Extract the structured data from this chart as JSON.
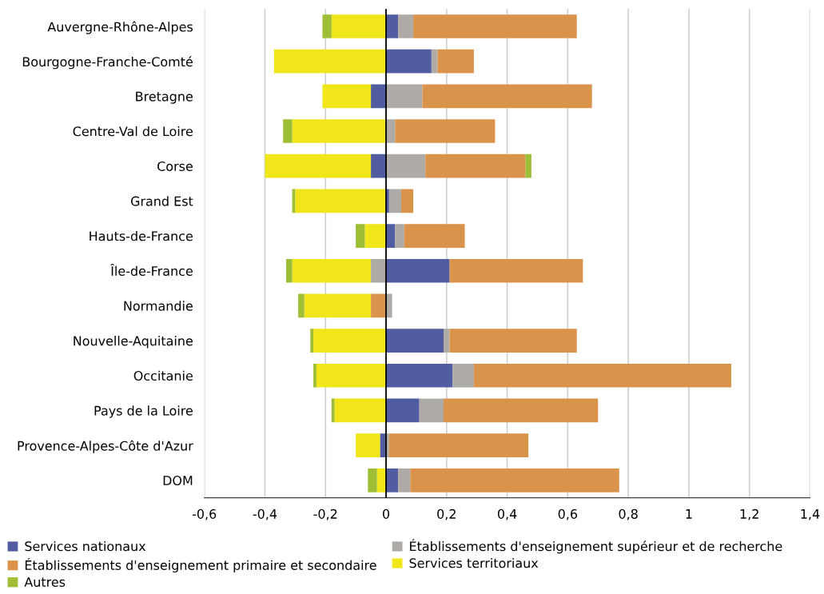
{
  "chart_data": {
    "type": "bar",
    "orientation": "horizontal",
    "stacked": true,
    "categories": [
      "Auvergne-Rhône-Alpes",
      "Bourgogne-Franche-Comté",
      "Bretagne",
      "Centre-Val de Loire",
      "Corse",
      "Grand Est",
      "Hauts-de-France",
      "Île-de-France",
      "Normandie",
      "Nouvelle-Aquitaine",
      "Occitanie",
      "Pays de la Loire",
      "Provence-Alpes-Côte d'Azur",
      "DOM"
    ],
    "series": [
      {
        "name": "Services nationaux",
        "color": "#525ca0",
        "values": [
          0.04,
          0.15,
          -0.05,
          0,
          -0.05,
          0.01,
          0.03,
          0.21,
          0,
          0.19,
          0.22,
          0.11,
          -0.02,
          0.04
        ]
      },
      {
        "name": "Établissements d'enseignement supérieur et de recherche",
        "color": "#aeaaa6",
        "values": [
          0.05,
          0.02,
          0.12,
          0.03,
          0.13,
          0.04,
          0.03,
          -0.05,
          0.02,
          0.02,
          0.07,
          0.08,
          0.01,
          0.04
        ]
      },
      {
        "name": "Établissements d'enseignement primaire et secondaire",
        "color": "#d9934a",
        "values": [
          0.54,
          0.12,
          0.56,
          0.33,
          0.33,
          0.04,
          0.2,
          0.44,
          -0.05,
          0.42,
          0.85,
          0.51,
          0.46,
          0.69
        ]
      },
      {
        "name": "Services territoriaux",
        "color": "#f0e619",
        "values": [
          -0.18,
          -0.37,
          -0.16,
          -0.31,
          -0.35,
          -0.3,
          -0.07,
          -0.26,
          -0.22,
          -0.24,
          -0.23,
          -0.17,
          -0.08,
          -0.03
        ]
      },
      {
        "name": "Autres",
        "color": "#9dbe35",
        "values": [
          -0.03,
          0,
          0,
          -0.03,
          0.02,
          -0.01,
          -0.03,
          -0.02,
          -0.02,
          -0.01,
          -0.01,
          -0.01,
          0,
          -0.03
        ]
      }
    ],
    "xlim": [
      -0.6,
      1.4
    ],
    "xticks": [
      {
        "value": -0.6,
        "label": "-0,6"
      },
      {
        "value": -0.4,
        "label": "-0,4"
      },
      {
        "value": -0.2,
        "label": "-0,2"
      },
      {
        "value": 0,
        "label": "0"
      },
      {
        "value": 0.2,
        "label": "0,2"
      },
      {
        "value": 0.4,
        "label": "0,4"
      },
      {
        "value": 0.6,
        "label": "0,6"
      },
      {
        "value": 0.8,
        "label": "0,8"
      },
      {
        "value": 1,
        "label": "1"
      },
      {
        "value": 1.2,
        "label": "1,2"
      },
      {
        "value": 1.4,
        "label": "1,4"
      }
    ],
    "grid": "x",
    "legend": "bottom",
    "ref_lines": [
      {
        "axis": "x",
        "value": 0,
        "color": "#000000"
      }
    ]
  }
}
